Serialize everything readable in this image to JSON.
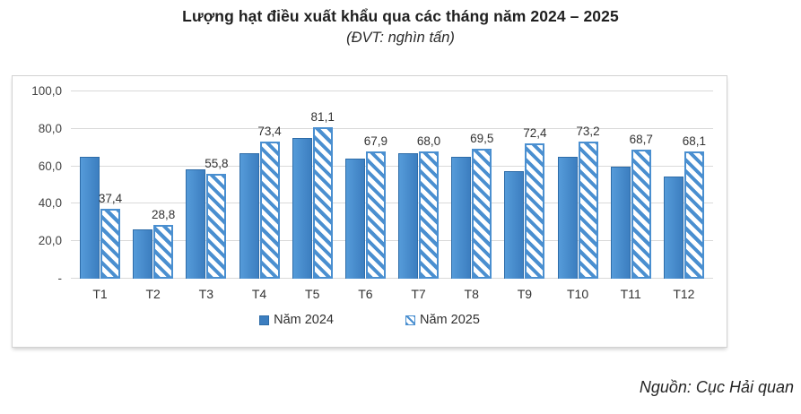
{
  "title": "Lượng hạt điều xuất khẩu qua các tháng năm 2024 – 2025",
  "subtitle": "(ĐVT: nghìn tấn)",
  "source_note": "Nguồn: Cục Hải quan",
  "colors": {
    "bar_2024_light": "#559bd9",
    "bar_2024_dark": "#3c7ec0",
    "bar_2024_border": "#2e6ca8",
    "bar_2025_hatch": "#4a8fd0",
    "gridline": "#d9d9d9",
    "chart_border": "#d2d2d2",
    "text": "#3a3a3a"
  },
  "legend": {
    "items": [
      {
        "label": "Năm 2024",
        "swatch": "solid"
      },
      {
        "label": "Năm 2025",
        "swatch": "hatched"
      }
    ]
  },
  "chart_data": {
    "type": "bar",
    "title": "Lượng hạt điều xuất khẩu qua các tháng năm 2024 – 2025",
    "subtitle": "(ĐVT: nghìn tấn)",
    "xlabel": "",
    "ylabel": "",
    "unit": "nghìn tấn",
    "categories": [
      "T1",
      "T2",
      "T3",
      "T4",
      "T5",
      "T6",
      "T7",
      "T8",
      "T9",
      "T10",
      "T11",
      "T12"
    ],
    "series": [
      {
        "name": "Năm 2024",
        "style": "solid",
        "data_labels_visible": false,
        "values": [
          65.0,
          26.5,
          58.5,
          67.0,
          75.0,
          64.0,
          67.0,
          65.0,
          57.3,
          65.3,
          60.0,
          54.5
        ]
      },
      {
        "name": "Năm 2025",
        "style": "hatched",
        "data_labels_visible": true,
        "values": [
          37.4,
          28.8,
          55.8,
          73.4,
          81.1,
          67.9,
          68.0,
          69.5,
          72.4,
          73.2,
          68.7,
          68.1
        ],
        "data_labels": [
          "37,4",
          "28,8",
          "55,8",
          "73,4",
          "81,1",
          "67,9",
          "68,0",
          "69,5",
          "72,4",
          "73,2",
          "68,7",
          "68,1"
        ]
      }
    ],
    "ylim": [
      0,
      100
    ],
    "yticks": [
      {
        "value": 0,
        "label": "-"
      },
      {
        "value": 20,
        "label": "20,0"
      },
      {
        "value": 40,
        "label": "40,0"
      },
      {
        "value": 60,
        "label": "60,0"
      },
      {
        "value": 80,
        "label": "80,0"
      },
      {
        "value": 100,
        "label": "100,0"
      }
    ],
    "grid": true,
    "legend_position": "bottom"
  }
}
